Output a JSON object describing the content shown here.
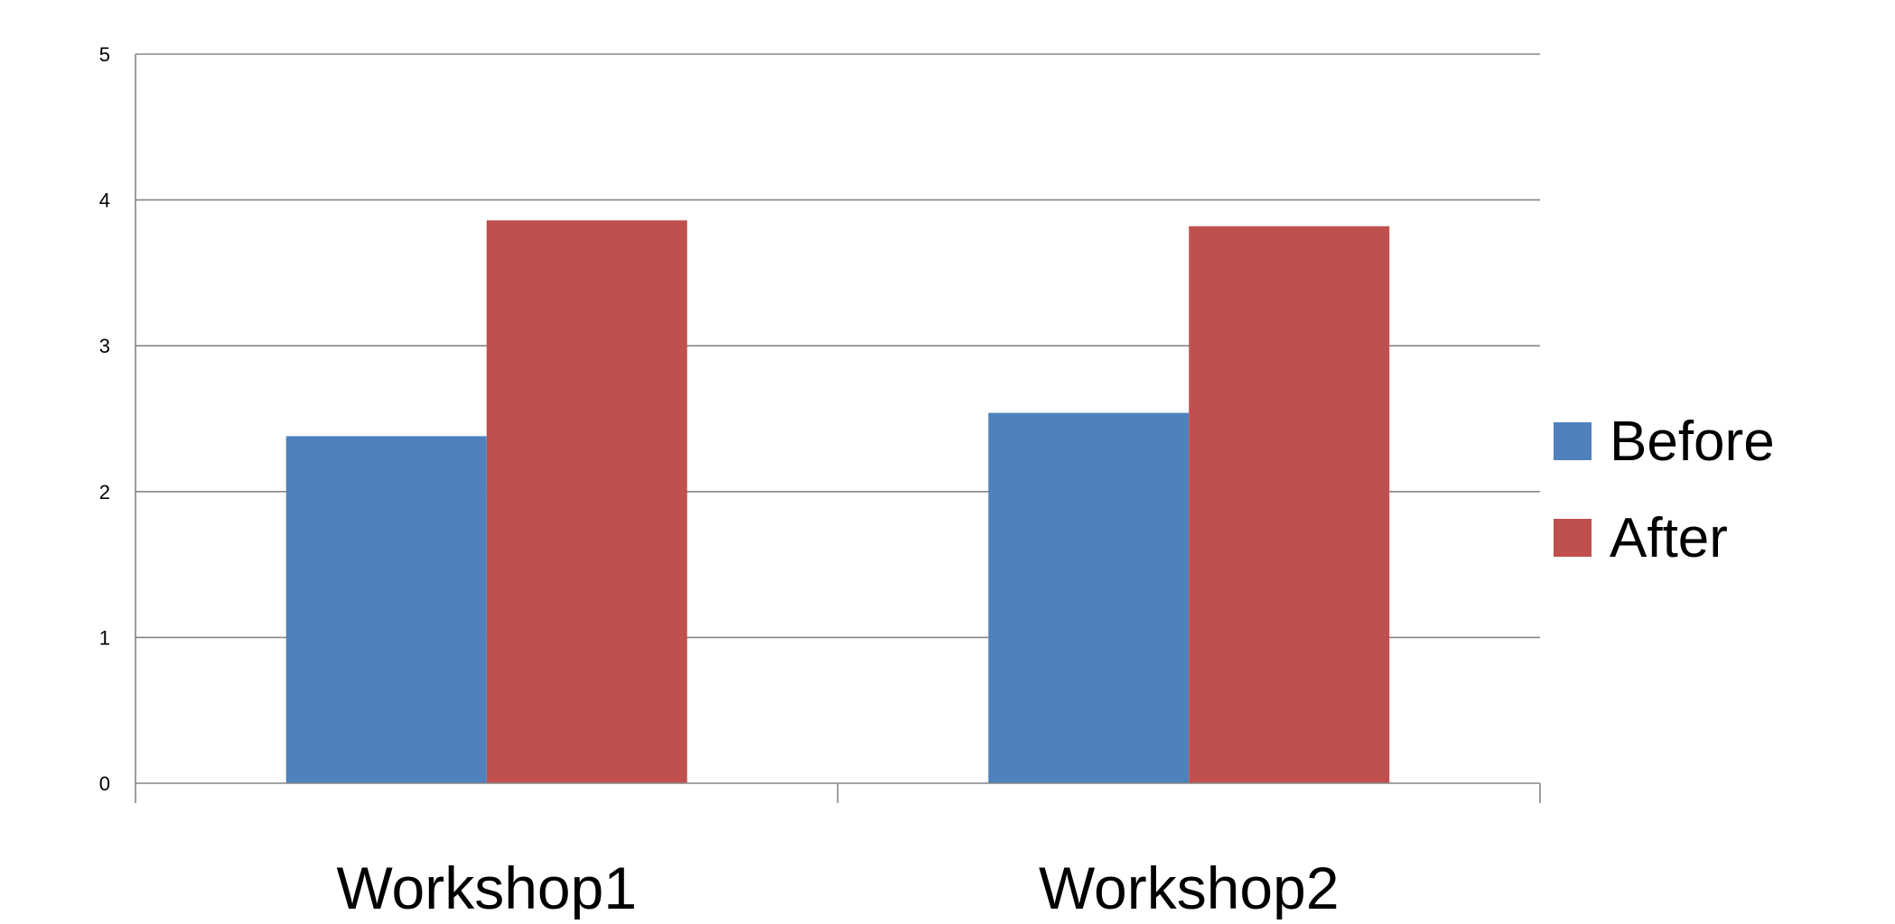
{
  "chart_data": {
    "type": "bar",
    "title": "",
    "xlabel": "",
    "ylabel": "",
    "categories": [
      "Workshop1",
      "Workshop2"
    ],
    "series": [
      {
        "name": "Before",
        "color": "#4F81BD",
        "values": [
          2.38,
          2.54
        ]
      },
      {
        "name": "After",
        "color": "#C0504D",
        "values": [
          3.86,
          3.82
        ]
      }
    ],
    "ylim": [
      0,
      5
    ],
    "yticks": [
      "0",
      "1",
      "2",
      "3",
      "4",
      "5"
    ],
    "grid": true,
    "legend_position": "right"
  }
}
